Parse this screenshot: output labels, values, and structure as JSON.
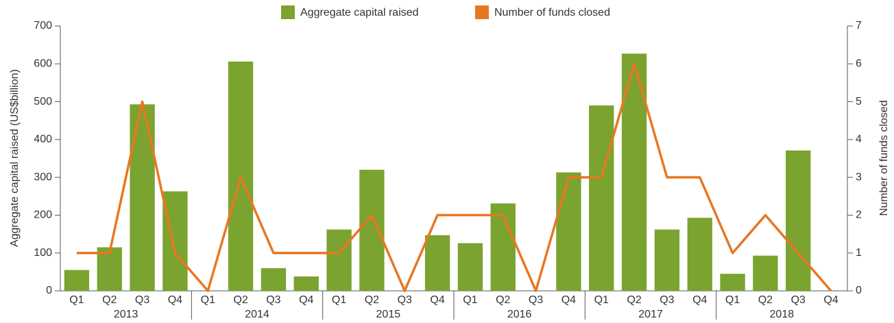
{
  "chart_data": {
    "type": "bar",
    "categories": [
      "Q1",
      "Q2",
      "Q3",
      "Q4",
      "Q1",
      "Q2",
      "Q3",
      "Q4",
      "Q1",
      "Q2",
      "Q3",
      "Q4",
      "Q1",
      "Q2",
      "Q3",
      "Q4",
      "Q1",
      "Q2",
      "Q3",
      "Q4",
      "Q1",
      "Q2",
      "Q3",
      "Q4"
    ],
    "groups": [
      "2013",
      "2014",
      "2015",
      "2016",
      "2017",
      "2018"
    ],
    "series": [
      {
        "name": "Aggregate capital raised",
        "color": "#7aa32f",
        "type": "bar",
        "values": [
          55,
          115,
          493,
          263,
          0,
          606,
          60,
          38,
          162,
          320,
          0,
          147,
          126,
          231,
          0,
          313,
          490,
          627,
          162,
          193,
          45,
          93,
          371,
          0
        ]
      },
      {
        "name": "Number of funds closed",
        "color": "#e87722",
        "type": "line",
        "axis": "y2",
        "values": [
          1,
          1,
          5,
          1,
          0,
          3,
          1,
          1,
          1,
          2,
          0,
          2,
          2,
          2,
          0,
          3,
          3,
          6,
          3,
          3,
          1,
          2,
          1,
          0
        ]
      }
    ],
    "ylabel": "Aggregate capital raised (US$billion)",
    "y2label": "Number of funds closed",
    "ylim": [
      0,
      700
    ],
    "yticks": [
      0,
      100,
      200,
      300,
      400,
      500,
      600,
      700
    ],
    "y2lim": [
      0,
      7
    ],
    "y2ticks": [
      0,
      1,
      2,
      3,
      4,
      5,
      6,
      7
    ],
    "legend": "top"
  }
}
